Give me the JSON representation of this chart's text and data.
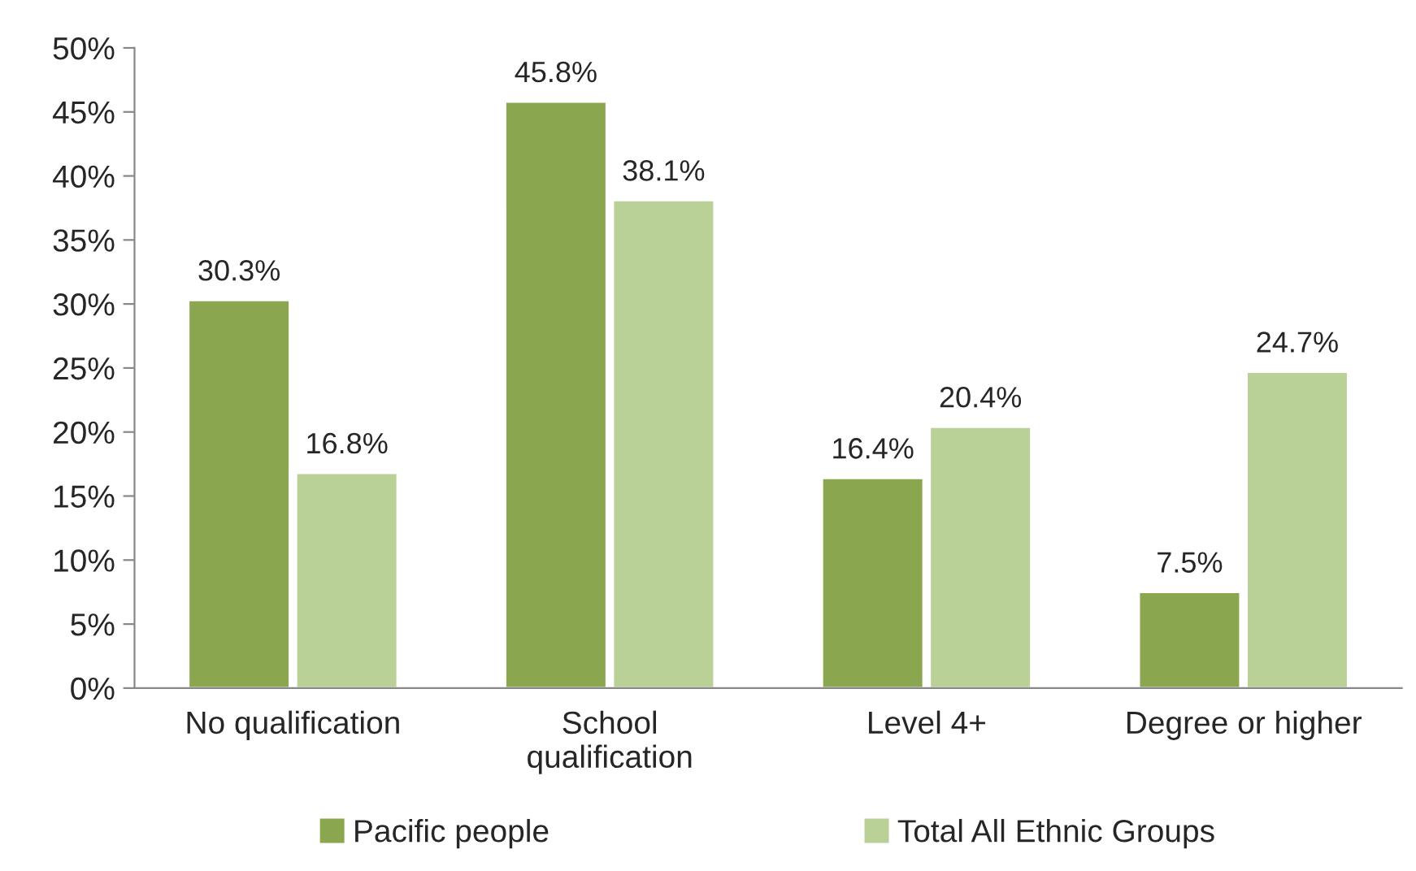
{
  "chart_data": {
    "type": "bar",
    "categories": [
      "No qualification",
      "School\nqualification",
      "Level 4+",
      "Degree or higher"
    ],
    "series": [
      {
        "name": "Pacific people",
        "color": "#8aa74f",
        "values": [
          30.3,
          45.8,
          16.4,
          7.5
        ],
        "value_labels": [
          "30.3%",
          "45.8%",
          "16.4%",
          "7.5%"
        ]
      },
      {
        "name": "Total All Ethnic Groups",
        "color": "#b9d097",
        "values": [
          16.8,
          38.1,
          20.4,
          24.7
        ],
        "value_labels": [
          "16.8%",
          "38.1%",
          "20.4%",
          "24.7%"
        ]
      }
    ],
    "ylim": [
      0,
      50
    ],
    "yticks": [
      {
        "value": 0,
        "label": "0%"
      },
      {
        "value": 5,
        "label": "5%"
      },
      {
        "value": 10,
        "label": "10%"
      },
      {
        "value": 15,
        "label": "15%"
      },
      {
        "value": 20,
        "label": "20%"
      },
      {
        "value": 25,
        "label": "25%"
      },
      {
        "value": 30,
        "label": "30%"
      },
      {
        "value": 35,
        "label": "35%"
      },
      {
        "value": 40,
        "label": "40%"
      },
      {
        "value": 45,
        "label": "45%"
      },
      {
        "value": 50,
        "label": "50%"
      }
    ],
    "grid": false,
    "legend": "bottom"
  }
}
